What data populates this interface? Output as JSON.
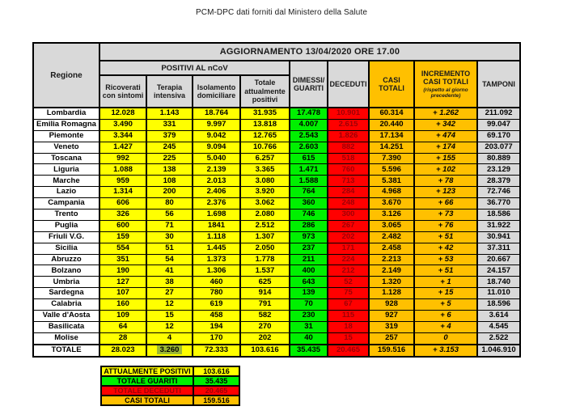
{
  "page_title": "PCM-DPC dati forniti dal Ministero della Salute",
  "headers": {
    "update": "AGGIORNAMENTO 13/04/2020 ORE 17.00",
    "region": "Regione",
    "positivi_group": "POSITIVI AL nCoV",
    "ricoverati": "Ricoverati con sintomi",
    "terapia": "Terapia intensiva",
    "isolamento": "Isolamento domiciliare",
    "totale_positivi": "Totale attualmente positivi",
    "dimessi": "DIMESSI/ GUARITI",
    "deceduti": "DECEDUTI",
    "casi_totali": "CASI TOTALI",
    "incremento": "INCREMENTO CASI TOTALI",
    "incremento_note": "(rispetto al giorno precedente)",
    "tamponi": "TAMPONI"
  },
  "chart_data": {
    "type": "table",
    "title": "AGGIORNAMENTO 13/04/2020 ORE 17.00",
    "columns": [
      "Regione",
      "Ricoverati con sintomi",
      "Terapia intensiva",
      "Isolamento domiciliare",
      "Totale attualmente positivi",
      "DIMESSI/ GUARITI",
      "DECEDUTI",
      "CASI TOTALI",
      "INCREMENTO CASI TOTALI (rispetto al giorno precedente)",
      "TAMPONI"
    ],
    "rows": [
      {
        "regione": "Lombardia",
        "ricoverati": "12.028",
        "terapia": "1.143",
        "isolamento": "18.764",
        "totale_positivi": "31.935",
        "dimessi": "17.478",
        "deceduti": "10.901",
        "casi_totali": "60.314",
        "incremento": "+ 1.262",
        "tamponi": "211.092"
      },
      {
        "regione": "Emilia Romagna",
        "ricoverati": "3.490",
        "terapia": "331",
        "isolamento": "9.997",
        "totale_positivi": "13.818",
        "dimessi": "4.007",
        "deceduti": "2.615",
        "casi_totali": "20.440",
        "incremento": "+ 342",
        "tamponi": "99.047"
      },
      {
        "regione": "Piemonte",
        "ricoverati": "3.344",
        "terapia": "379",
        "isolamento": "9.042",
        "totale_positivi": "12.765",
        "dimessi": "2.543",
        "deceduti": "1.826",
        "casi_totali": "17.134",
        "incremento": "+ 474",
        "tamponi": "69.170"
      },
      {
        "regione": "Veneto",
        "ricoverati": "1.427",
        "terapia": "245",
        "isolamento": "9.094",
        "totale_positivi": "10.766",
        "dimessi": "2.603",
        "deceduti": "882",
        "casi_totali": "14.251",
        "incremento": "+ 174",
        "tamponi": "203.077"
      },
      {
        "regione": "Toscana",
        "ricoverati": "992",
        "terapia": "225",
        "isolamento": "5.040",
        "totale_positivi": "6.257",
        "dimessi": "615",
        "deceduti": "518",
        "casi_totali": "7.390",
        "incremento": "+ 155",
        "tamponi": "80.889"
      },
      {
        "regione": "Liguria",
        "ricoverati": "1.088",
        "terapia": "138",
        "isolamento": "2.139",
        "totale_positivi": "3.365",
        "dimessi": "1.471",
        "deceduti": "760",
        "casi_totali": "5.596",
        "incremento": "+ 102",
        "tamponi": "23.129"
      },
      {
        "regione": "Marche",
        "ricoverati": "959",
        "terapia": "108",
        "isolamento": "2.013",
        "totale_positivi": "3.080",
        "dimessi": "1.588",
        "deceduti": "713",
        "casi_totali": "5.381",
        "incremento": "+ 78",
        "tamponi": "28.379"
      },
      {
        "regione": "Lazio",
        "ricoverati": "1.314",
        "terapia": "200",
        "isolamento": "2.406",
        "totale_positivi": "3.920",
        "dimessi": "764",
        "deceduti": "284",
        "casi_totali": "4.968",
        "incremento": "+ 123",
        "tamponi": "72.746"
      },
      {
        "regione": "Campania",
        "ricoverati": "606",
        "terapia": "80",
        "isolamento": "2.376",
        "totale_positivi": "3.062",
        "dimessi": "360",
        "deceduti": "248",
        "casi_totali": "3.670",
        "incremento": "+ 66",
        "tamponi": "36.770"
      },
      {
        "regione": "Trento",
        "ricoverati": "326",
        "terapia": "56",
        "isolamento": "1.698",
        "totale_positivi": "2.080",
        "dimessi": "746",
        "deceduti": "300",
        "casi_totali": "3.126",
        "incremento": "+ 73",
        "tamponi": "18.586"
      },
      {
        "regione": "Puglia",
        "ricoverati": "600",
        "terapia": "71",
        "isolamento": "1841",
        "totale_positivi": "2.512",
        "dimessi": "286",
        "deceduti": "267",
        "casi_totali": "3.065",
        "incremento": "+ 76",
        "tamponi": "31.922"
      },
      {
        "regione": "Friuli V.G.",
        "ricoverati": "159",
        "terapia": "30",
        "isolamento": "1.118",
        "totale_positivi": "1.307",
        "dimessi": "973",
        "deceduti": "202",
        "casi_totali": "2.482",
        "incremento": "+ 51",
        "tamponi": "30.941"
      },
      {
        "regione": "Sicilia",
        "ricoverati": "554",
        "terapia": "51",
        "isolamento": "1.445",
        "totale_positivi": "2.050",
        "dimessi": "237",
        "deceduti": "171",
        "casi_totali": "2.458",
        "incremento": "+ 42",
        "tamponi": "37.311"
      },
      {
        "regione": "Abruzzo",
        "ricoverati": "351",
        "terapia": "54",
        "isolamento": "1.373",
        "totale_positivi": "1.778",
        "dimessi": "211",
        "deceduti": "224",
        "casi_totali": "2.213",
        "incremento": "+ 53",
        "tamponi": "20.667"
      },
      {
        "regione": "Bolzano",
        "ricoverati": "190",
        "terapia": "41",
        "isolamento": "1.306",
        "totale_positivi": "1.537",
        "dimessi": "400",
        "deceduti": "212",
        "casi_totali": "2.149",
        "incremento": "+ 51",
        "tamponi": "24.157"
      },
      {
        "regione": "Umbria",
        "ricoverati": "127",
        "terapia": "38",
        "isolamento": "460",
        "totale_positivi": "625",
        "dimessi": "643",
        "deceduti": "52",
        "casi_totali": "1.320",
        "incremento": "+ 1",
        "tamponi": "18.740"
      },
      {
        "regione": "Sardegna",
        "ricoverati": "107",
        "terapia": "27",
        "isolamento": "780",
        "totale_positivi": "914",
        "dimessi": "139",
        "deceduti": "75",
        "casi_totali": "1.128",
        "incremento": "+ 15",
        "tamponi": "11.010"
      },
      {
        "regione": "Calabria",
        "ricoverati": "160",
        "terapia": "12",
        "isolamento": "619",
        "totale_positivi": "791",
        "dimessi": "70",
        "deceduti": "67",
        "casi_totali": "928",
        "incremento": "+ 5",
        "tamponi": "18.596"
      },
      {
        "regione": "Valle d'Aosta",
        "ricoverati": "109",
        "terapia": "15",
        "isolamento": "458",
        "totale_positivi": "582",
        "dimessi": "230",
        "deceduti": "115",
        "casi_totali": "927",
        "incremento": "+ 6",
        "tamponi": "3.614"
      },
      {
        "regione": "Basilicata",
        "ricoverati": "64",
        "terapia": "12",
        "isolamento": "194",
        "totale_positivi": "270",
        "dimessi": "31",
        "deceduti": "18",
        "casi_totali": "319",
        "incremento": "+ 4",
        "tamponi": "4.545"
      },
      {
        "regione": "Molise",
        "ricoverati": "28",
        "terapia": "4",
        "isolamento": "170",
        "totale_positivi": "202",
        "dimessi": "40",
        "deceduti": "15",
        "casi_totali": "257",
        "incremento": "0",
        "tamponi": "2.522"
      }
    ],
    "totale": {
      "regione": "TOTALE",
      "ricoverati": "28.023",
      "terapia": "3.260",
      "isolamento": "72.333",
      "totale_positivi": "103.616",
      "dimessi": "35.435",
      "deceduti": "20.465",
      "casi_totali": "159.516",
      "incremento": "+ 3.153",
      "tamponi": "1.046.910"
    },
    "totale_terapia_highlight": true
  },
  "legend": [
    {
      "label": "ATTUALMENTE POSITIVI",
      "value": "103.616",
      "bg": "#ffff00",
      "text": "#000000"
    },
    {
      "label": "TOTALE GUARITI",
      "value": "35.435",
      "bg": "#00f000",
      "text": "#000000"
    },
    {
      "label": "TOTALE DECEDUTI",
      "value": "20.465",
      "bg": "#ff0000",
      "text": "#9c0006"
    },
    {
      "label": "CASI TOTALI",
      "value": "159.516",
      "bg": "#ffc000",
      "text": "#000000"
    }
  ],
  "colors": {
    "header_gray": "#d9d9d9",
    "yellow": "#ffff00",
    "green": "#00f000",
    "red": "#ff0000",
    "orange": "#ffc000",
    "tamponi_gray": "#d9d9d9",
    "deceduti_text": "#9c0006",
    "border": "#000000",
    "totale_terapia_highlight": "#9cb832"
  }
}
